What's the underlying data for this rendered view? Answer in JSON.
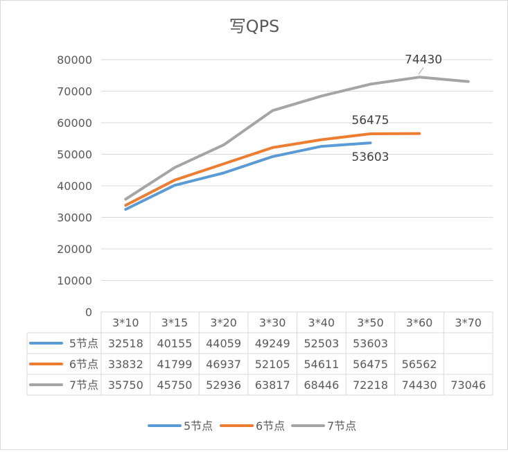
{
  "chart_data": {
    "type": "line",
    "title": "写QPS",
    "categories": [
      "3*10",
      "3*15",
      "3*20",
      "3*30",
      "3*40",
      "3*50",
      "3*60",
      "3*70"
    ],
    "ylim": [
      0,
      80000
    ],
    "yticks": [
      "0",
      "10000",
      "20000",
      "30000",
      "40000",
      "50000",
      "60000",
      "70000",
      "80000"
    ],
    "grid": true,
    "legend": "bottom",
    "data_table": true,
    "series": [
      {
        "name": "5节点",
        "color": "#5b9bd5",
        "values": [
          32518,
          40155,
          44059,
          49249,
          52503,
          53603,
          null,
          null
        ],
        "display": [
          "32518",
          "40155",
          "44059",
          "49249",
          "52503",
          "53603",
          "",
          ""
        ],
        "point_label": "53603"
      },
      {
        "name": "6节点",
        "color": "#ed7d31",
        "values": [
          33832,
          41799,
          46937,
          52105,
          54611,
          56475,
          56562,
          null
        ],
        "display": [
          "33832",
          "41799",
          "46937",
          "52105",
          "54611",
          "56475",
          "56562",
          ""
        ],
        "point_label": "56475"
      },
      {
        "name": "7节点",
        "color": "#a5a5a5",
        "values": [
          35750,
          45750,
          52936,
          63817,
          68446,
          72218,
          74430,
          73046
        ],
        "display": [
          "35750",
          "45750",
          "52936",
          "63817",
          "68446",
          "72218",
          "74430",
          "73046"
        ],
        "point_label": "74430"
      }
    ]
  }
}
